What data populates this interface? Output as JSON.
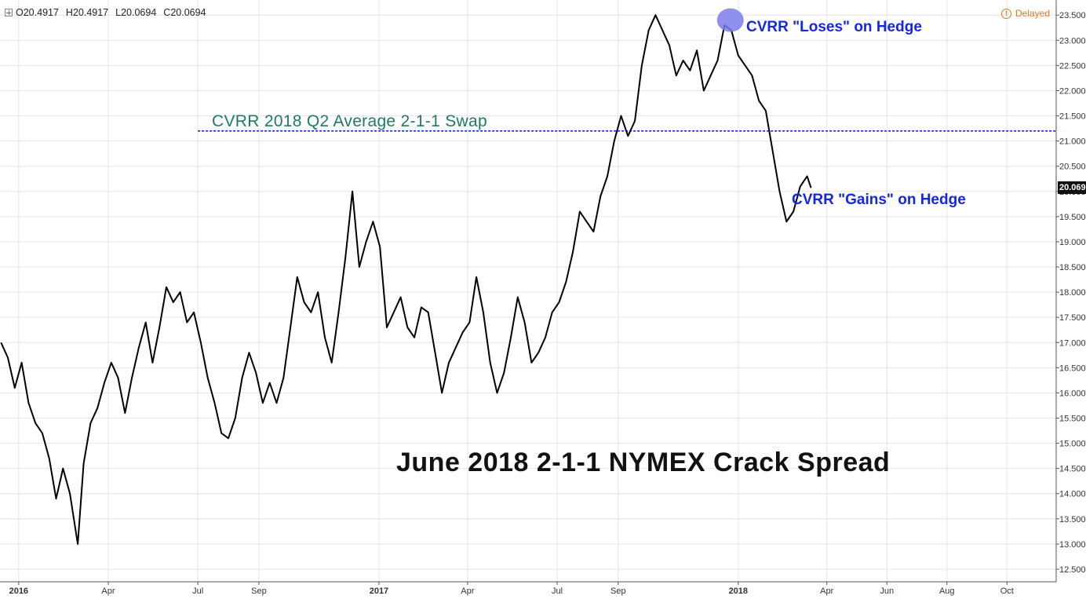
{
  "ohlc": {
    "o_label": "O",
    "o": "20.4917",
    "h_label": "H",
    "h": "20.4917",
    "l_label": "L",
    "l": "20.0694",
    "c_label": "C",
    "c": "20.0694"
  },
  "status": {
    "delayed": "Delayed",
    "color": "#f5761a"
  },
  "annotations": {
    "loses": "CVRR \"Loses\" on Hedge",
    "gains": "CVRR \"Gains\" on Hedge",
    "swap": "CVRR 2018 Q2 Average 2-1-1 Swap",
    "color": "#1527e6",
    "swap_color": "#1f7a63"
  },
  "price_tag": "20.069",
  "chart_data": {
    "type": "line",
    "title": "June 2018 2-1-1 NYMEX Crack Spread",
    "y_ticks": [
      "12.500",
      "13.000",
      "13.500",
      "14.000",
      "14.500",
      "15.000",
      "15.500",
      "16.000",
      "16.500",
      "17.000",
      "17.500",
      "18.000",
      "18.500",
      "19.000",
      "19.500",
      "20.000",
      "20.500",
      "21.000",
      "21.500",
      "22.000",
      "22.500",
      "23.000",
      "23.500"
    ],
    "ylim": [
      12.25,
      23.8
    ],
    "x_ticks": [
      {
        "label": "2016",
        "date": "2016-01-01",
        "bold": true
      },
      {
        "label": "Apr",
        "date": "2016-04-01",
        "bold": false
      },
      {
        "label": "Jul",
        "date": "2016-07-01",
        "bold": false
      },
      {
        "label": "Sep",
        "date": "2016-09-01",
        "bold": false
      },
      {
        "label": "2017",
        "date": "2017-01-01",
        "bold": true
      },
      {
        "label": "Apr",
        "date": "2017-04-01",
        "bold": false
      },
      {
        "label": "Jul",
        "date": "2017-07-01",
        "bold": false
      },
      {
        "label": "Sep",
        "date": "2017-09-01",
        "bold": false
      },
      {
        "label": "2018",
        "date": "2018-01-01",
        "bold": true
      },
      {
        "label": "Apr",
        "date": "2018-04-01",
        "bold": false
      },
      {
        "label": "Jun",
        "date": "2018-06-01",
        "bold": false
      },
      {
        "label": "Aug",
        "date": "2018-08-01",
        "bold": false
      },
      {
        "label": "Oct",
        "date": "2018-10-01",
        "bold": false
      }
    ],
    "xlim": [
      "2015-12-13",
      "2018-11-20"
    ],
    "swap_level": 21.2,
    "swap_start": "2016-07-01",
    "hedge_marker": {
      "date": "2017-12-24",
      "value": 23.4,
      "color": "#7b7bea"
    },
    "grid": true,
    "series": [
      {
        "color": "#000000",
        "points": [
          [
            "2015-12-14",
            17.0
          ],
          [
            "2015-12-21",
            16.7
          ],
          [
            "2015-12-28",
            16.1
          ],
          [
            "2016-01-04",
            16.6
          ],
          [
            "2016-01-11",
            15.8
          ],
          [
            "2016-01-18",
            15.4
          ],
          [
            "2016-01-25",
            15.2
          ],
          [
            "2016-02-01",
            14.7
          ],
          [
            "2016-02-08",
            13.9
          ],
          [
            "2016-02-15",
            14.5
          ],
          [
            "2016-02-22",
            14.0
          ],
          [
            "2016-03-01",
            13.0
          ],
          [
            "2016-03-07",
            14.6
          ],
          [
            "2016-03-14",
            15.4
          ],
          [
            "2016-03-21",
            15.7
          ],
          [
            "2016-03-28",
            16.2
          ],
          [
            "2016-04-04",
            16.6
          ],
          [
            "2016-04-11",
            16.3
          ],
          [
            "2016-04-18",
            15.6
          ],
          [
            "2016-04-25",
            16.3
          ],
          [
            "2016-05-02",
            16.9
          ],
          [
            "2016-05-09",
            17.4
          ],
          [
            "2016-05-16",
            16.6
          ],
          [
            "2016-05-23",
            17.3
          ],
          [
            "2016-05-30",
            18.1
          ],
          [
            "2016-06-06",
            17.8
          ],
          [
            "2016-06-13",
            18.0
          ],
          [
            "2016-06-20",
            17.4
          ],
          [
            "2016-06-27",
            17.6
          ],
          [
            "2016-07-04",
            17.0
          ],
          [
            "2016-07-11",
            16.3
          ],
          [
            "2016-07-18",
            15.8
          ],
          [
            "2016-07-25",
            15.2
          ],
          [
            "2016-08-01",
            15.1
          ],
          [
            "2016-08-08",
            15.5
          ],
          [
            "2016-08-15",
            16.3
          ],
          [
            "2016-08-22",
            16.8
          ],
          [
            "2016-08-29",
            16.4
          ],
          [
            "2016-09-05",
            15.8
          ],
          [
            "2016-09-12",
            16.2
          ],
          [
            "2016-09-19",
            15.8
          ],
          [
            "2016-09-26",
            16.3
          ],
          [
            "2016-10-03",
            17.3
          ],
          [
            "2016-10-10",
            18.3
          ],
          [
            "2016-10-17",
            17.8
          ],
          [
            "2016-10-24",
            17.6
          ],
          [
            "2016-10-31",
            18.0
          ],
          [
            "2016-11-07",
            17.1
          ],
          [
            "2016-11-14",
            16.6
          ],
          [
            "2016-11-21",
            17.6
          ],
          [
            "2016-11-28",
            18.7
          ],
          [
            "2016-12-05",
            20.0
          ],
          [
            "2016-12-12",
            18.5
          ],
          [
            "2016-12-19",
            19.0
          ],
          [
            "2016-12-26",
            19.4
          ],
          [
            "2017-01-02",
            18.9
          ],
          [
            "2017-01-09",
            17.3
          ],
          [
            "2017-01-16",
            17.6
          ],
          [
            "2017-01-23",
            17.9
          ],
          [
            "2017-01-30",
            17.3
          ],
          [
            "2017-02-06",
            17.1
          ],
          [
            "2017-02-13",
            17.7
          ],
          [
            "2017-02-20",
            17.6
          ],
          [
            "2017-02-27",
            16.8
          ],
          [
            "2017-03-06",
            16.0
          ],
          [
            "2017-03-13",
            16.6
          ],
          [
            "2017-03-20",
            16.9
          ],
          [
            "2017-03-27",
            17.2
          ],
          [
            "2017-04-03",
            17.4
          ],
          [
            "2017-04-10",
            18.3
          ],
          [
            "2017-04-17",
            17.6
          ],
          [
            "2017-04-24",
            16.6
          ],
          [
            "2017-05-01",
            16.0
          ],
          [
            "2017-05-08",
            16.4
          ],
          [
            "2017-05-15",
            17.1
          ],
          [
            "2017-05-22",
            17.9
          ],
          [
            "2017-05-29",
            17.4
          ],
          [
            "2017-06-05",
            16.6
          ],
          [
            "2017-06-12",
            16.8
          ],
          [
            "2017-06-19",
            17.1
          ],
          [
            "2017-06-26",
            17.6
          ],
          [
            "2017-07-03",
            17.8
          ],
          [
            "2017-07-10",
            18.2
          ],
          [
            "2017-07-17",
            18.8
          ],
          [
            "2017-07-24",
            19.6
          ],
          [
            "2017-07-31",
            19.4
          ],
          [
            "2017-08-07",
            19.2
          ],
          [
            "2017-08-14",
            19.9
          ],
          [
            "2017-08-21",
            20.3
          ],
          [
            "2017-08-28",
            21.0
          ],
          [
            "2017-09-04",
            21.5
          ],
          [
            "2017-09-11",
            21.1
          ],
          [
            "2017-09-18",
            21.4
          ],
          [
            "2017-09-25",
            22.5
          ],
          [
            "2017-10-02",
            23.2
          ],
          [
            "2017-10-09",
            23.5
          ],
          [
            "2017-10-16",
            23.2
          ],
          [
            "2017-10-23",
            22.9
          ],
          [
            "2017-10-30",
            22.3
          ],
          [
            "2017-11-06",
            22.6
          ],
          [
            "2017-11-13",
            22.4
          ],
          [
            "2017-11-20",
            22.8
          ],
          [
            "2017-11-27",
            22.0
          ],
          [
            "2017-12-04",
            22.3
          ],
          [
            "2017-12-11",
            22.6
          ],
          [
            "2017-12-18",
            23.3
          ],
          [
            "2017-12-25",
            23.2
          ],
          [
            "2018-01-01",
            22.7
          ],
          [
            "2018-01-08",
            22.5
          ],
          [
            "2018-01-15",
            22.3
          ],
          [
            "2018-01-22",
            21.8
          ],
          [
            "2018-01-29",
            21.6
          ],
          [
            "2018-02-05",
            20.8
          ],
          [
            "2018-02-12",
            20.0
          ],
          [
            "2018-02-19",
            19.4
          ],
          [
            "2018-02-26",
            19.6
          ],
          [
            "2018-03-05",
            20.1
          ],
          [
            "2018-03-12",
            20.3
          ],
          [
            "2018-03-16",
            20.07
          ]
        ]
      }
    ]
  }
}
